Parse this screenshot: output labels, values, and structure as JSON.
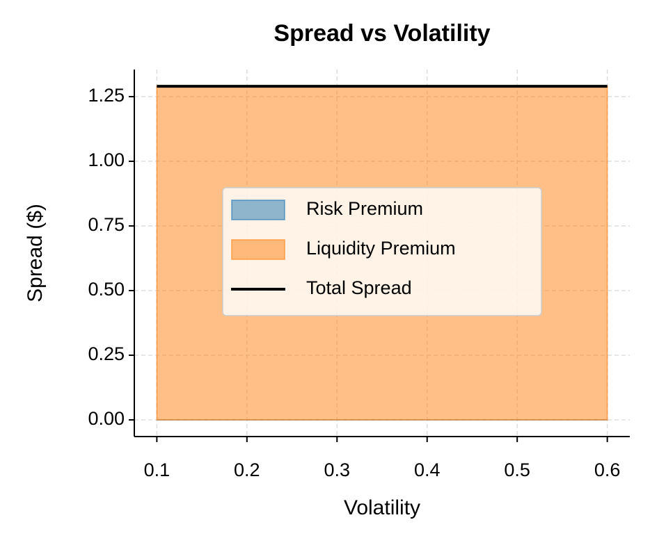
{
  "chart_data": {
    "type": "area",
    "title": "Spread vs Volatility",
    "xlabel": "Volatility",
    "ylabel": "Spread ($)",
    "x": [
      0.1,
      0.2,
      0.3,
      0.4,
      0.5,
      0.6
    ],
    "stacked": true,
    "series": [
      {
        "name": "Risk Premium",
        "color": "#1f77b4",
        "mark": "area",
        "values": [
          0,
          0,
          0,
          0,
          0,
          0
        ]
      },
      {
        "name": "Liquidity Premium",
        "color": "#ff7f0e",
        "mark": "area",
        "values": [
          1.29,
          1.29,
          1.29,
          1.29,
          1.29,
          1.29
        ]
      },
      {
        "name": "Total Spread",
        "color": "#000000",
        "mark": "line",
        "values": [
          1.29,
          1.29,
          1.29,
          1.29,
          1.29,
          1.29
        ]
      }
    ],
    "xlim": [
      0.075,
      0.625
    ],
    "ylim": [
      -0.0645,
      1.355
    ],
    "xticks": [
      0.1,
      0.2,
      0.3,
      0.4,
      0.5,
      0.6
    ],
    "yticks": [
      {
        "value": 0,
        "label": "0.00"
      },
      {
        "value": 0.25,
        "label": "0.25"
      },
      {
        "value": 0.5,
        "label": "0.50"
      },
      {
        "value": 0.75,
        "label": "0.75"
      },
      {
        "value": 1,
        "label": "1.00"
      },
      {
        "value": 1.25,
        "label": "1.25"
      }
    ],
    "grid": true,
    "legend": "center"
  }
}
